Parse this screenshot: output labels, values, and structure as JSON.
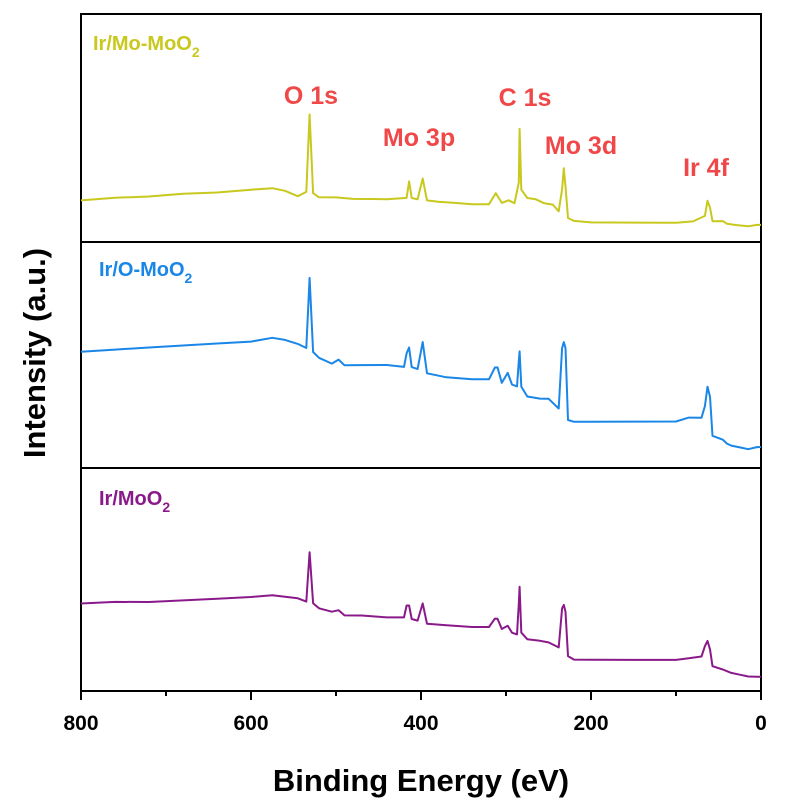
{
  "chart_data": {
    "type": "line",
    "title": "",
    "xlabel": "Binding Energy (eV)",
    "ylabel": "Intensity (a.u.)",
    "xlim": [
      800,
      0
    ],
    "x_reversed": true,
    "xticks": [
      "800",
      "600",
      "400",
      "200",
      "0"
    ],
    "tick_values": [
      800,
      600,
      400,
      200,
      0
    ],
    "yticks": "none",
    "layout": "three stacked panels sharing the x axis",
    "annotations": [
      {
        "text": "O 1s",
        "x": 531
      },
      {
        "text": "Mo 3p",
        "x": 414
      },
      {
        "text": "C 1s",
        "x": 284
      },
      {
        "text": "Mo 3d",
        "x": 232
      },
      {
        "text": "Ir 4f",
        "x": 62
      }
    ],
    "series": [
      {
        "name": "Ir/Mo-MoO",
        "name_sub": "2",
        "color": "#c8c81e",
        "ylim": [
          0,
          100
        ],
        "points": [
          [
            800,
            20
          ],
          [
            760,
            22
          ],
          [
            720,
            23
          ],
          [
            680,
            25
          ],
          [
            640,
            26
          ],
          [
            600,
            28
          ],
          [
            575,
            29
          ],
          [
            560,
            27
          ],
          [
            545,
            23
          ],
          [
            535,
            26
          ],
          [
            531,
            82
          ],
          [
            527,
            25
          ],
          [
            520,
            22
          ],
          [
            500,
            22
          ],
          [
            480,
            21
          ],
          [
            460,
            21
          ],
          [
            440,
            21
          ],
          [
            417,
            22
          ],
          [
            414,
            34
          ],
          [
            411,
            22
          ],
          [
            404,
            21
          ],
          [
            398,
            36
          ],
          [
            393,
            20
          ],
          [
            380,
            19
          ],
          [
            360,
            18
          ],
          [
            340,
            17
          ],
          [
            320,
            17
          ],
          [
            312,
            25
          ],
          [
            305,
            18
          ],
          [
            297,
            20
          ],
          [
            290,
            18
          ],
          [
            285,
            33
          ],
          [
            284,
            72
          ],
          [
            282,
            28
          ],
          [
            275,
            22
          ],
          [
            265,
            21
          ],
          [
            255,
            18
          ],
          [
            245,
            17
          ],
          [
            238,
            12
          ],
          [
            234,
            28
          ],
          [
            232,
            43
          ],
          [
            230,
            30
          ],
          [
            227,
            7
          ],
          [
            220,
            5
          ],
          [
            200,
            4
          ],
          [
            150,
            4
          ],
          [
            100,
            4
          ],
          [
            80,
            5
          ],
          [
            66,
            9
          ],
          [
            63,
            20
          ],
          [
            60,
            15
          ],
          [
            57,
            5
          ],
          [
            45,
            5
          ],
          [
            40,
            3
          ],
          [
            30,
            2
          ],
          [
            15,
            1
          ],
          [
            5,
            2
          ],
          [
            0,
            2
          ]
        ]
      },
      {
        "name": "Ir/O-MoO",
        "name_sub": "2",
        "color": "#1a86e8",
        "ylim": [
          0,
          100
        ],
        "points": [
          [
            800,
            53
          ],
          [
            760,
            54
          ],
          [
            720,
            55
          ],
          [
            680,
            56
          ],
          [
            640,
            57
          ],
          [
            600,
            58
          ],
          [
            575,
            60
          ],
          [
            560,
            59
          ],
          [
            545,
            57
          ],
          [
            535,
            55
          ],
          [
            531,
            91
          ],
          [
            527,
            53
          ],
          [
            520,
            50
          ],
          [
            505,
            47
          ],
          [
            497,
            49
          ],
          [
            490,
            46
          ],
          [
            470,
            46
          ],
          [
            440,
            46
          ],
          [
            420,
            45
          ],
          [
            417,
            52
          ],
          [
            414,
            55
          ],
          [
            411,
            45
          ],
          [
            404,
            44
          ],
          [
            398,
            58
          ],
          [
            393,
            42
          ],
          [
            370,
            40
          ],
          [
            340,
            39
          ],
          [
            320,
            39
          ],
          [
            313,
            45
          ],
          [
            310,
            45
          ],
          [
            305,
            37
          ],
          [
            298,
            42
          ],
          [
            293,
            36
          ],
          [
            287,
            35
          ],
          [
            285,
            48
          ],
          [
            284,
            53
          ],
          [
            282,
            35
          ],
          [
            275,
            30
          ],
          [
            260,
            29
          ],
          [
            250,
            29
          ],
          [
            238,
            24
          ],
          [
            234,
            55
          ],
          [
            232,
            58
          ],
          [
            230,
            55
          ],
          [
            227,
            18
          ],
          [
            220,
            17
          ],
          [
            200,
            17
          ],
          [
            150,
            17
          ],
          [
            100,
            17
          ],
          [
            85,
            19
          ],
          [
            70,
            19
          ],
          [
            66,
            25
          ],
          [
            63,
            35
          ],
          [
            60,
            30
          ],
          [
            57,
            10
          ],
          [
            45,
            8
          ],
          [
            40,
            6
          ],
          [
            35,
            5
          ],
          [
            25,
            4
          ],
          [
            15,
            3
          ],
          [
            5,
            4
          ],
          [
            0,
            4
          ]
        ]
      },
      {
        "name": "Ir/MoO",
        "name_sub": "2",
        "color": "#8a1a8a",
        "ylim": [
          0,
          100
        ],
        "points": [
          [
            800,
            45
          ],
          [
            760,
            46
          ],
          [
            720,
            46
          ],
          [
            680,
            47
          ],
          [
            640,
            48
          ],
          [
            600,
            49
          ],
          [
            575,
            50
          ],
          [
            560,
            49
          ],
          [
            545,
            48
          ],
          [
            535,
            46
          ],
          [
            531,
            75
          ],
          [
            527,
            45
          ],
          [
            520,
            42
          ],
          [
            505,
            40
          ],
          [
            497,
            41
          ],
          [
            490,
            38
          ],
          [
            470,
            38
          ],
          [
            440,
            37
          ],
          [
            420,
            37
          ],
          [
            417,
            44
          ],
          [
            414,
            44
          ],
          [
            411,
            36
          ],
          [
            404,
            35
          ],
          [
            398,
            45
          ],
          [
            393,
            33
          ],
          [
            370,
            32
          ],
          [
            340,
            31
          ],
          [
            320,
            31
          ],
          [
            313,
            36
          ],
          [
            310,
            36
          ],
          [
            305,
            30
          ],
          [
            298,
            32
          ],
          [
            293,
            28
          ],
          [
            287,
            27
          ],
          [
            285,
            45
          ],
          [
            284,
            55
          ],
          [
            282,
            28
          ],
          [
            275,
            24
          ],
          [
            260,
            23
          ],
          [
            250,
            22
          ],
          [
            238,
            19
          ],
          [
            234,
            42
          ],
          [
            232,
            44
          ],
          [
            230,
            40
          ],
          [
            227,
            14
          ],
          [
            220,
            12
          ],
          [
            200,
            12
          ],
          [
            150,
            12
          ],
          [
            100,
            12
          ],
          [
            85,
            13
          ],
          [
            70,
            14
          ],
          [
            66,
            20
          ],
          [
            63,
            23
          ],
          [
            60,
            18
          ],
          [
            57,
            8
          ],
          [
            45,
            6
          ],
          [
            40,
            5
          ],
          [
            35,
            4
          ],
          [
            25,
            3
          ],
          [
            15,
            2
          ],
          [
            5,
            2
          ],
          [
            0,
            2
          ]
        ]
      }
    ]
  }
}
